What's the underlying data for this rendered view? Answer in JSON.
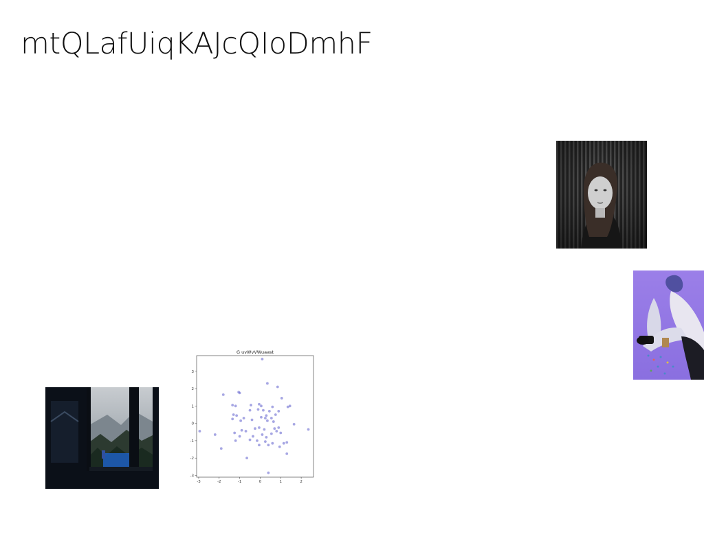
{
  "page": {
    "title": "mtQLafUiqKAJcQIoDmhF"
  },
  "images": [
    {
      "name": "portrait-photo",
      "description": "black and white woman portrait"
    },
    {
      "name": "sitting-figure-photo",
      "description": "figure sitting on purple background"
    },
    {
      "name": "window-landscape-photo",
      "description": "dark window with misty mountain view"
    }
  ],
  "chart_data": {
    "type": "scatter",
    "title": "G uvWvVWuaast",
    "xlabel": "",
    "ylabel": "",
    "xlim": [
      -3.1,
      2.6
    ],
    "ylim": [
      -3.1,
      3.9
    ],
    "xticks": [
      -3,
      -2,
      -1,
      0,
      1,
      2
    ],
    "yticks": [
      -3,
      -2,
      -1,
      0,
      1,
      2,
      3
    ],
    "grid": false,
    "point_color": "#6a6ad0",
    "points": [
      [
        0.1,
        3.7
      ],
      [
        0.35,
        2.3
      ],
      [
        0.85,
        2.1
      ],
      [
        -1.8,
        1.65
      ],
      [
        -1.05,
        1.8
      ],
      [
        -1.0,
        1.75
      ],
      [
        1.05,
        1.45
      ],
      [
        -1.35,
        1.05
      ],
      [
        -1.2,
        1.0
      ],
      [
        -0.45,
        1.05
      ],
      [
        -0.05,
        1.1
      ],
      [
        0.05,
        1.0
      ],
      [
        0.6,
        0.95
      ],
      [
        1.35,
        0.95
      ],
      [
        1.45,
        1.0
      ],
      [
        -0.5,
        0.75
      ],
      [
        -0.1,
        0.8
      ],
      [
        0.15,
        0.75
      ],
      [
        0.45,
        0.7
      ],
      [
        0.9,
        0.7
      ],
      [
        -1.3,
        0.5
      ],
      [
        -1.15,
        0.45
      ],
      [
        0.3,
        0.45
      ],
      [
        0.75,
        0.5
      ],
      [
        -0.4,
        0.2
      ],
      [
        -1.35,
        0.25
      ],
      [
        -0.8,
        0.3
      ],
      [
        0.05,
        0.35
      ],
      [
        0.25,
        0.3
      ],
      [
        0.55,
        0.3
      ],
      [
        1.65,
        -0.05
      ],
      [
        -0.95,
        0.15
      ],
      [
        0.35,
        0.15
      ],
      [
        0.65,
        0.1
      ],
      [
        -2.95,
        -0.45
      ],
      [
        -2.2,
        -0.65
      ],
      [
        -1.25,
        -0.55
      ],
      [
        -0.9,
        -0.4
      ],
      [
        -0.7,
        -0.45
      ],
      [
        -0.25,
        -0.3
      ],
      [
        -0.05,
        -0.25
      ],
      [
        0.2,
        -0.35
      ],
      [
        0.7,
        -0.3
      ],
      [
        0.9,
        -0.25
      ],
      [
        0.8,
        -0.45
      ],
      [
        2.35,
        -0.35
      ],
      [
        -1.0,
        -0.75
      ],
      [
        -0.35,
        -0.75
      ],
      [
        0.1,
        -0.65
      ],
      [
        0.3,
        -0.8
      ],
      [
        0.55,
        -0.6
      ],
      [
        1.0,
        -0.55
      ],
      [
        -1.2,
        -1.0
      ],
      [
        -0.5,
        -0.95
      ],
      [
        -0.15,
        -1.0
      ],
      [
        0.25,
        -1.05
      ],
      [
        0.6,
        -1.15
      ],
      [
        1.15,
        -1.15
      ],
      [
        1.3,
        -1.1
      ],
      [
        -0.05,
        -1.25
      ],
      [
        0.4,
        -1.25
      ],
      [
        -1.9,
        -1.45
      ],
      [
        0.95,
        -1.35
      ],
      [
        1.3,
        -1.75
      ],
      [
        -0.65,
        -2.0
      ],
      [
        0.4,
        -2.85
      ]
    ]
  }
}
